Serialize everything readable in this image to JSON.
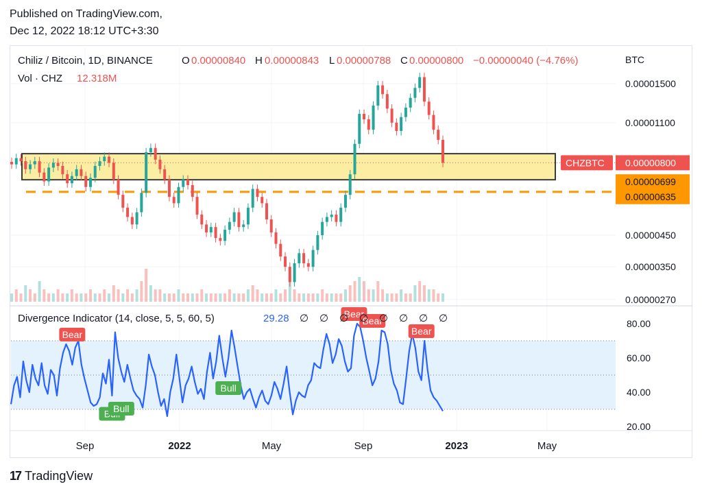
{
  "header": {
    "published": "Published on TradingView.com,",
    "timestamp": "Dec 12, 2022 18:12 UTC+3:30"
  },
  "footer": {
    "brand": "TradingView",
    "logo_glyph": "17"
  },
  "legend": {
    "symbol": "Chiliz / Bitcoin, 1D, BINANCE",
    "o_label": "O",
    "o_value": "0.00000840",
    "h_label": "H",
    "h_value": "0.00000843",
    "l_label": "L",
    "l_value": "0.00000788",
    "c_label": "C",
    "c_value": "0.00000800",
    "change": "−0.00000040 (−4.76%)",
    "vol_label": "Vol · CHZ",
    "vol_value": "12.318M",
    "indicator": "Divergence Indicator (14, close, 5, 5, 60, 5)",
    "indicator_value": "29.28",
    "empty_marks": [
      "∅",
      "∅",
      "∅",
      "∅",
      "∅",
      "∅",
      "∅",
      "∅"
    ]
  },
  "colors": {
    "up": "#26a69a",
    "down": "#ef5350",
    "rsi_line": "#2962ff",
    "zone_fill": "#fbeda2",
    "zone_border": "#3a3a3a",
    "dashed": "#ff9800",
    "rsi_band": "#e3f2fd",
    "bear": "#ef5350",
    "bull": "#4caf50"
  },
  "chart_data": [
    {
      "type": "candlestick",
      "title": "Chiliz / Bitcoin, 1D, BINANCE",
      "currency": "BTC",
      "y_ticks": [
        "0.00001500",
        "0.00001100",
        "0.00000450",
        "0.00000350",
        "0.00000270"
      ],
      "y_tick_values": [
        1.5e-05,
        1.1e-05,
        4.5e-06,
        3.5e-06,
        2.7e-06
      ],
      "x_ticks": [
        "Sep",
        "2022",
        "May",
        "Sep",
        "2023",
        "May"
      ],
      "price_labels": [
        {
          "text": "CHZBTC",
          "value": 8e-06,
          "price_text": "0.00000800"
        },
        {
          "text": "",
          "value": 6.99e-06,
          "price_text": "0.00000699"
        },
        {
          "text": "",
          "value": 6.35e-06,
          "price_text": "0.00000635"
        }
      ],
      "zone": {
        "low": 6.99e-06,
        "high": 8.6e-06
      },
      "dashed_level": 6.35e-06,
      "close_series": [
        7.9,
        8.3,
        8.1,
        7.6,
        7.9,
        8.1,
        7.4,
        6.9,
        7.7,
        8.0,
        7.8,
        7.3,
        6.8,
        7.2,
        7.6,
        7.2,
        6.6,
        7.1,
        7.8,
        8.1,
        8.4,
        8.0,
        7.0,
        6.2,
        5.6,
        5.2,
        4.9,
        5.4,
        6.3,
        8.7,
        9.0,
        8.2,
        7.6,
        7.0,
        6.1,
        5.8,
        6.6,
        7.0,
        6.7,
        6.1,
        5.3,
        4.9,
        4.6,
        4.8,
        4.4,
        4.3,
        4.7,
        5.0,
        5.4,
        4.8,
        4.9,
        5.6,
        6.5,
        6.1,
        5.8,
        5.1,
        4.6,
        4.2,
        3.8,
        3.5,
        3.1,
        3.6,
        3.9,
        3.6,
        3.5,
        4.0,
        4.5,
        5.0,
        5.2,
        5.3,
        5.0,
        5.6,
        6.2,
        7.3,
        9.3,
        11.8,
        11.3,
        10.4,
        12.6,
        14.8,
        13.8,
        12.3,
        11.0,
        10.3,
        11.5,
        12.4,
        13.4,
        14.5,
        15.8,
        13.0,
        11.7,
        10.4,
        9.6,
        8.0
      ],
      "volume_series": [
        2,
        3,
        2,
        4,
        3,
        2,
        5,
        3,
        2,
        2,
        3,
        2,
        2,
        3,
        2,
        2,
        2,
        3,
        2,
        2,
        3,
        2,
        4,
        3,
        2,
        3,
        2,
        3,
        5,
        8,
        4,
        3,
        3,
        2,
        2,
        2,
        3,
        2,
        2,
        2,
        2,
        3,
        2,
        2,
        2,
        2,
        2,
        3,
        2,
        2,
        2,
        3,
        4,
        3,
        2,
        2,
        2,
        3,
        2,
        3,
        5,
        3,
        2,
        2,
        2,
        2,
        2,
        3,
        2,
        2,
        2,
        2,
        3,
        4,
        5,
        6,
        5,
        3,
        3,
        5,
        3,
        2,
        2,
        2,
        3,
        2,
        2,
        4,
        5,
        4,
        3,
        3,
        2,
        2
      ]
    },
    {
      "type": "line",
      "title": "Divergence Indicator (14, close, 5, 5, 60, 5)",
      "ylim": [
        18,
        88
      ],
      "y_ticks": [
        "80.00",
        "60.00",
        "40.00",
        "20.00"
      ],
      "y_tick_values": [
        80,
        60,
        40,
        20
      ],
      "band": [
        30,
        70
      ],
      "mid_line": 50,
      "values": [
        33,
        44,
        49,
        37,
        58,
        47,
        40,
        56,
        48,
        44,
        57,
        44,
        39,
        53,
        50,
        38,
        54,
        63,
        68,
        64,
        56,
        66,
        70,
        56,
        48,
        41,
        34,
        32,
        33,
        37,
        51,
        45,
        59,
        38,
        75,
        60,
        52,
        46,
        56,
        48,
        41,
        38,
        36,
        31,
        44,
        62,
        55,
        50,
        40,
        32,
        36,
        26,
        40,
        48,
        62,
        48,
        34,
        44,
        48,
        55,
        46,
        39,
        42,
        36,
        52,
        63,
        48,
        58,
        73,
        60,
        49,
        60,
        76,
        66,
        55,
        44,
        36,
        40,
        42,
        36,
        31,
        37,
        41,
        35,
        33,
        38,
        46,
        42,
        36,
        45,
        55,
        40,
        27,
        35,
        40,
        38,
        37,
        44,
        47,
        57,
        55,
        54,
        65,
        74,
        68,
        57,
        62,
        71,
        67,
        58,
        52,
        54,
        73,
        80,
        78,
        70,
        60,
        52,
        44,
        48,
        58,
        76,
        75,
        68,
        53,
        45,
        41,
        34,
        33,
        48,
        64,
        74,
        66,
        52,
        47,
        70,
        53,
        41,
        37,
        35,
        32,
        29
      ],
      "signals": [
        {
          "label": "Bear",
          "index": 20,
          "value": 68
        },
        {
          "label": "Bull",
          "index": 33,
          "value": 33
        },
        {
          "label": "Bull",
          "index": 36,
          "value": 36
        },
        {
          "label": "Bull",
          "index": 71,
          "value": 48
        },
        {
          "label": "Bear",
          "index": 112,
          "value": 80
        },
        {
          "label": "Bear",
          "index": 118,
          "value": 76
        },
        {
          "label": "Bear",
          "index": 134,
          "value": 70
        }
      ]
    }
  ]
}
